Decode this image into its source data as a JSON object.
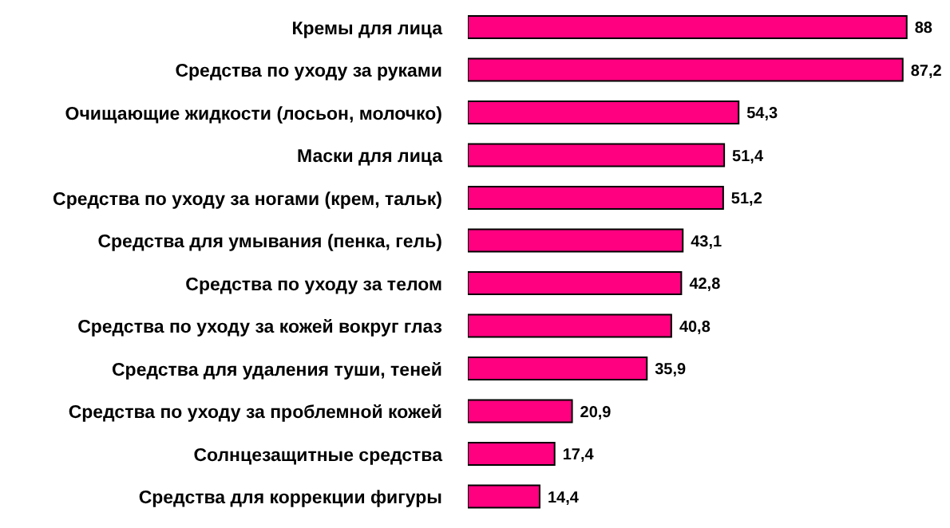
{
  "chart_data": {
    "type": "bar",
    "orientation": "horizontal",
    "categories": [
      "Кремы для лица",
      "Средства по уходу за руками",
      "Очищающие жидкости (лосьон, молочко)",
      "Маски для лица",
      "Средства по уходу за ногами (крем, тальк)",
      "Средства для умывания (пенка, гель)",
      "Средства по уходу за телом",
      "Средства по уходу за кожей вокруг глаз",
      "Средства для удаления туши, теней",
      "Средства по уходу за проблемной кожей",
      "Солнцезащитные средства",
      "Средства для коррекции фигуры"
    ],
    "values": [
      88,
      87.2,
      54.3,
      51.4,
      51.2,
      43.1,
      42.8,
      40.8,
      35.9,
      20.9,
      17.4,
      14.4
    ],
    "value_labels": [
      "88",
      "87,2",
      "54,3",
      "51,4",
      "51,2",
      "43,1",
      "42,8",
      "40,8",
      "35,9",
      "20,9",
      "17,4",
      "14,4"
    ],
    "color": "#ff0080",
    "grid": false,
    "legend": false
  }
}
